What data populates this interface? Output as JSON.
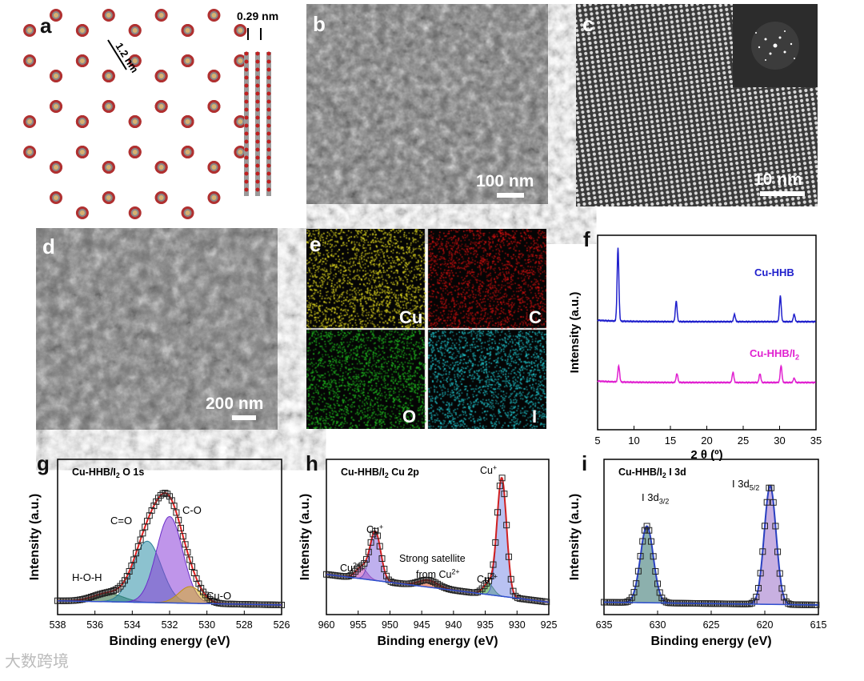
{
  "panels": {
    "a": {
      "label": "a",
      "dim_pore": "1.2 nm",
      "dim_layer": "0.29 nm"
    },
    "b": {
      "label": "b",
      "scale": "100 nm"
    },
    "c": {
      "label": "c",
      "scale": "10 nm"
    },
    "d": {
      "label": "d",
      "scale": "200 nm"
    },
    "e": {
      "label": "e",
      "maps": [
        "Cu",
        "C",
        "O",
        "I"
      ]
    },
    "f": {
      "label": "f"
    },
    "g": {
      "label": "g"
    },
    "h": {
      "label": "h"
    },
    "i": {
      "label": "i"
    }
  },
  "watermark": "大数跨境",
  "colors": {
    "cu_hhb": "#1f1fcc",
    "cu_hhb_i2": "#e020d0",
    "edx_cu": "#e8e020",
    "edx_c": "#d01010",
    "edx_o": "#20c020",
    "edx_i": "#20c8d0"
  },
  "chart_data": [
    {
      "id": "f",
      "type": "line",
      "title": "",
      "xlabel": "2 θ (º)",
      "ylabel": "Intensity (a.u.)",
      "xlim": [
        5,
        35
      ],
      "xticks": [
        5,
        10,
        15,
        20,
        25,
        30,
        35
      ],
      "series": [
        {
          "name": "Cu-HHB",
          "peaks": [
            [
              7.8,
              1.0
            ],
            [
              15.8,
              0.28
            ],
            [
              23.8,
              0.1
            ],
            [
              30.1,
              0.35
            ],
            [
              32.0,
              0.1
            ]
          ]
        },
        {
          "name": "Cu-HHB/I",
          "name_sub": "2",
          "peaks": [
            [
              7.9,
              0.22
            ],
            [
              15.9,
              0.12
            ],
            [
              23.6,
              0.14
            ],
            [
              27.3,
              0.12
            ],
            [
              30.2,
              0.23
            ],
            [
              32.0,
              0.06
            ]
          ]
        }
      ]
    },
    {
      "id": "g",
      "type": "line",
      "title": "Cu-HHB/I",
      "title_sub": "2",
      "title_rest": " O 1s",
      "xlabel": "Binding energy (eV)",
      "ylabel": "Intensity (a.u.)",
      "xlim": [
        538,
        526
      ],
      "xticks": [
        538,
        536,
        534,
        532,
        530,
        528,
        526
      ],
      "components": [
        {
          "label": "H-O-H",
          "center": 535.3,
          "height": 0.06
        },
        {
          "label": "C=O",
          "center": 533.2,
          "height": 0.44
        },
        {
          "label": "C-O",
          "center": 532.0,
          "height": 0.62
        },
        {
          "label": "Cu-O",
          "center": 530.9,
          "height": 0.12
        }
      ]
    },
    {
      "id": "h",
      "type": "line",
      "title": "Cu-HHB/I",
      "title_sub": "2",
      "title_rest": " Cu 2p",
      "xlabel": "Binding energy (eV)",
      "ylabel": "Intensity (a.u.)",
      "xlim": [
        960,
        925
      ],
      "xticks": [
        960,
        955,
        950,
        945,
        940,
        935,
        930,
        925
      ],
      "annotations": [
        "Cu",
        "Cu",
        "Cu",
        "Cu",
        "Strong satellite",
        "from Cu"
      ],
      "annotation_sups": [
        "2+",
        "+",
        "+",
        "2+",
        "",
        "2+"
      ],
      "components": [
        {
          "label": "Cu2+",
          "center": 954.5,
          "height": 0.08
        },
        {
          "label": "Cu+",
          "center": 952.3,
          "height": 0.35
        },
        {
          "label": "satellite",
          "center": 944.0,
          "height": 0.05
        },
        {
          "label": "Cu2+",
          "center": 934.5,
          "height": 0.08
        },
        {
          "label": "Cu+",
          "center": 932.4,
          "height": 0.85
        }
      ]
    },
    {
      "id": "i",
      "type": "line",
      "title": "Cu-HHB/I",
      "title_sub": "2",
      "title_rest": " I 3d",
      "xlabel": "Binding energy (eV)",
      "ylabel": "Intensity (a.u.)",
      "xlim": [
        635,
        615
      ],
      "xticks": [
        635,
        630,
        625,
        620,
        615
      ],
      "annotations": [
        "I 3d",
        "I 3d"
      ],
      "annotation_subs": [
        "3/2",
        "5/2"
      ],
      "components": [
        {
          "label": "I 3d3/2",
          "center": 631.0,
          "height": 0.55
        },
        {
          "label": "I 3d5/2",
          "center": 619.5,
          "height": 0.85
        }
      ]
    }
  ]
}
